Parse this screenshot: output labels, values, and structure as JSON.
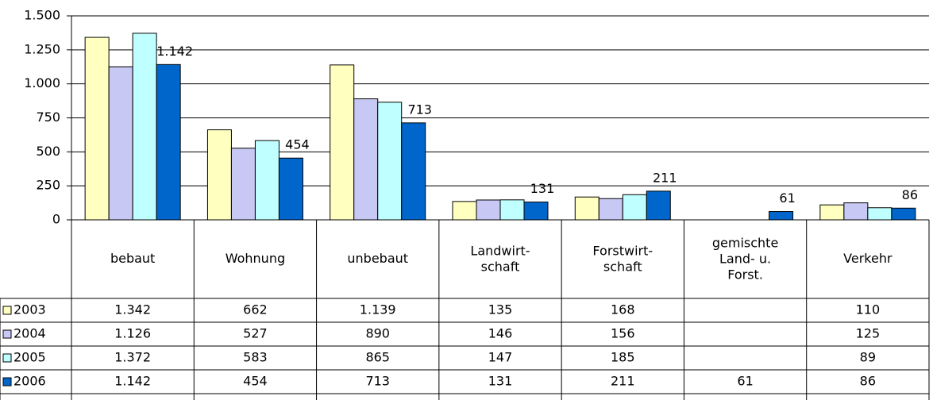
{
  "chart_data": {
    "type": "bar",
    "categories": [
      "bebaut",
      "Wohnung",
      "unbebaut",
      "Landwirt-\nschaft",
      "Forstwirt-\nschaft",
      "gemischte\nLand- u.\nForst.",
      "Verkehr"
    ],
    "series": [
      {
        "name": "2003",
        "color": "#ffffc0",
        "values": [
          1342,
          662,
          1139,
          135,
          168,
          null,
          110
        ],
        "value_labels": [
          "1.342",
          "662",
          "1.139",
          "135",
          "168",
          null,
          "110"
        ]
      },
      {
        "name": "2004",
        "color": "#c8c8f4",
        "values": [
          1126,
          527,
          890,
          146,
          156,
          null,
          125
        ],
        "value_labels": [
          "1.126",
          "527",
          "890",
          "146",
          "156",
          null,
          "125"
        ]
      },
      {
        "name": "2005",
        "color": "#c0ffff",
        "values": [
          1372,
          583,
          865,
          147,
          185,
          null,
          89
        ],
        "value_labels": [
          "1.372",
          "583",
          "865",
          "147",
          "185",
          null,
          "89"
        ]
      },
      {
        "name": "2006",
        "color": "#0066cc",
        "values": [
          1142,
          454,
          713,
          131,
          211,
          61,
          86
        ],
        "value_labels": [
          "1.142",
          "454",
          "713",
          "131",
          "211",
          "61",
          "86"
        ]
      }
    ],
    "labeled_series": 3,
    "ylim": [
      0,
      1500
    ],
    "yticks": [
      0,
      250,
      500,
      750,
      {
        "value": 1000,
        "label": "1.000"
      },
      {
        "value": 1250,
        "label": "1.250"
      },
      {
        "value": 1500,
        "label": "1.500"
      }
    ],
    "grid": true,
    "data_table": true
  }
}
